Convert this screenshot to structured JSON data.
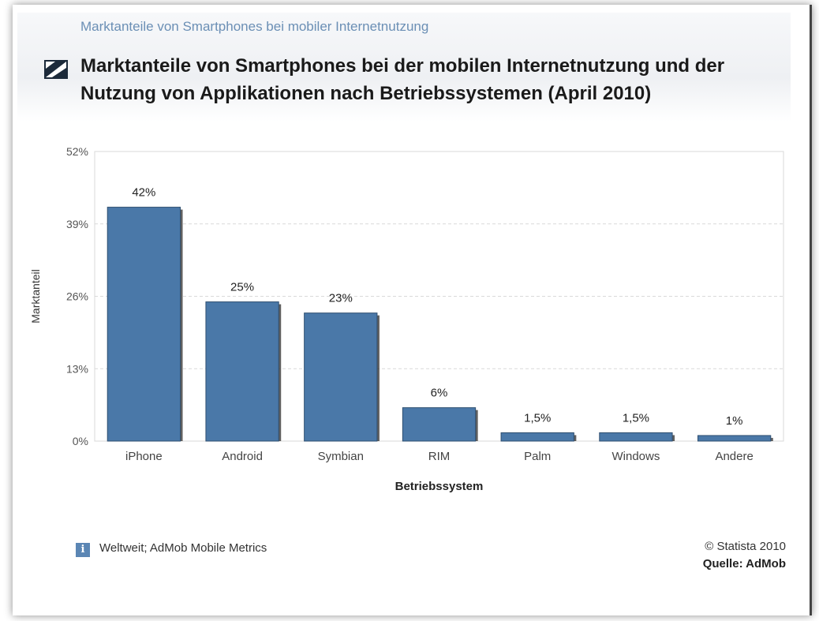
{
  "header": {
    "breadcrumb": "Marktanteile von Smartphones bei mobiler Internetnutzung",
    "title": "Marktanteile von Smartphones bei der mobilen Internetnutzung und der Nutzung von Applikationen nach Betriebssystemen (April 2010)"
  },
  "chart_data": {
    "type": "bar",
    "title": "Marktanteile von Smartphones bei der mobilen Internetnutzung und der Nutzung von Applikationen nach Betriebssystemen (April 2010)",
    "xlabel": "Betriebssystem",
    "ylabel": "Marktanteil",
    "categories": [
      "iPhone",
      "Android",
      "Symbian",
      "RIM",
      "Palm",
      "Windows",
      "Andere"
    ],
    "values": [
      42,
      25,
      23,
      6,
      1.5,
      1.5,
      1
    ],
    "data_labels": [
      "42%",
      "25%",
      "23%",
      "6%",
      "1,5%",
      "1,5%",
      "1%"
    ],
    "ylim": [
      0,
      52
    ],
    "yticks": [
      0,
      13,
      26,
      39,
      52
    ],
    "ytick_labels": [
      "0%",
      "13%",
      "26%",
      "39%",
      "52%"
    ],
    "bar_color": "#4a78a8",
    "grid": true
  },
  "footer": {
    "info_icon": "info-icon",
    "note": "Weltweit; AdMob Mobile Metrics",
    "copyright": "© Statista 2010",
    "source": "Quelle: AdMob"
  }
}
